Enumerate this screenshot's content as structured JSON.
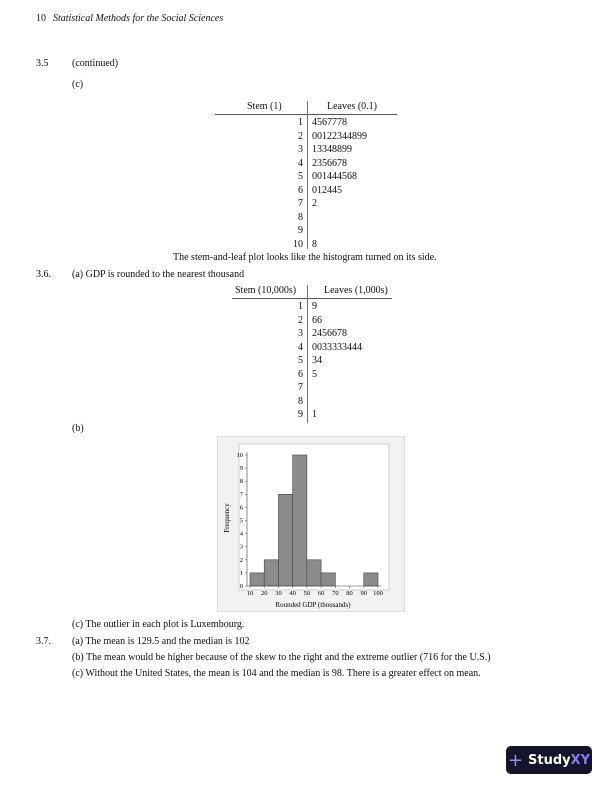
{
  "header": {
    "page_number": "10",
    "book_title": "Statistical Methods for the Social Sciences"
  },
  "q35": {
    "number": "3.5",
    "continued": "(continued)",
    "part": "(c)",
    "table": {
      "stem_header": "Stem (1)",
      "leaves_header": "Leaves (0.1)",
      "rows": [
        [
          "1",
          "4567778"
        ],
        [
          "2",
          "00122344899"
        ],
        [
          "3",
          "13348899"
        ],
        [
          "4",
          "2356678"
        ],
        [
          "5",
          "001444568"
        ],
        [
          "6",
          "012445"
        ],
        [
          "7",
          "2"
        ],
        [
          "8",
          ""
        ],
        [
          "9",
          ""
        ],
        [
          "10",
          "8"
        ]
      ]
    },
    "caption": "The stem-and-leaf plot looks like the histogram turned on its side."
  },
  "q36": {
    "number": "3.6.",
    "part_a": "(a) GDP is rounded to the nearest thousand",
    "table": {
      "stem_header": "Stem (10,000s)",
      "leaves_header": "Leaves (1,000s)",
      "rows": [
        [
          "1",
          "9"
        ],
        [
          "2",
          "66"
        ],
        [
          "3",
          "2456678"
        ],
        [
          "4",
          "0033333444"
        ],
        [
          "5",
          "34"
        ],
        [
          "6",
          "5"
        ],
        [
          "7",
          ""
        ],
        [
          "8",
          ""
        ],
        [
          "9",
          "1"
        ]
      ]
    },
    "part_b": "(b)",
    "part_c": "(c) The outlier in each plot is Luxembourg."
  },
  "chart_data": {
    "type": "bar",
    "xlabel": "Rounded GDP (thousands)",
    "ylabel": "Frequency",
    "bin_edges": [
      10,
      20,
      30,
      40,
      50,
      60,
      70,
      80,
      90,
      100
    ],
    "values": [
      1,
      2,
      7,
      10,
      2,
      1,
      0,
      0,
      1
    ],
    "xticks": [
      "10",
      "20",
      "30",
      "40",
      "50",
      "60",
      "70",
      "80",
      "90",
      "100"
    ],
    "yticks": [
      "0",
      "1",
      "2",
      "3",
      "4",
      "5",
      "6",
      "7",
      "8",
      "9",
      "10"
    ],
    "xlim": [
      10,
      100
    ],
    "ylim": [
      0,
      10
    ],
    "bar_color": "#8c8c8c",
    "grid": false
  },
  "q37": {
    "number": "3.7.",
    "lines": [
      "(a) The mean is 129.5 and the median is 102",
      "(b) The mean would be higher because of the skew to the right and the extreme outlier (716 for the U.S.)",
      "(c) Without the United States, the mean is 104 and the median is 98. There is a greater effect on mean."
    ]
  },
  "logo": {
    "text_a": "Study",
    "text_b": "XY"
  }
}
